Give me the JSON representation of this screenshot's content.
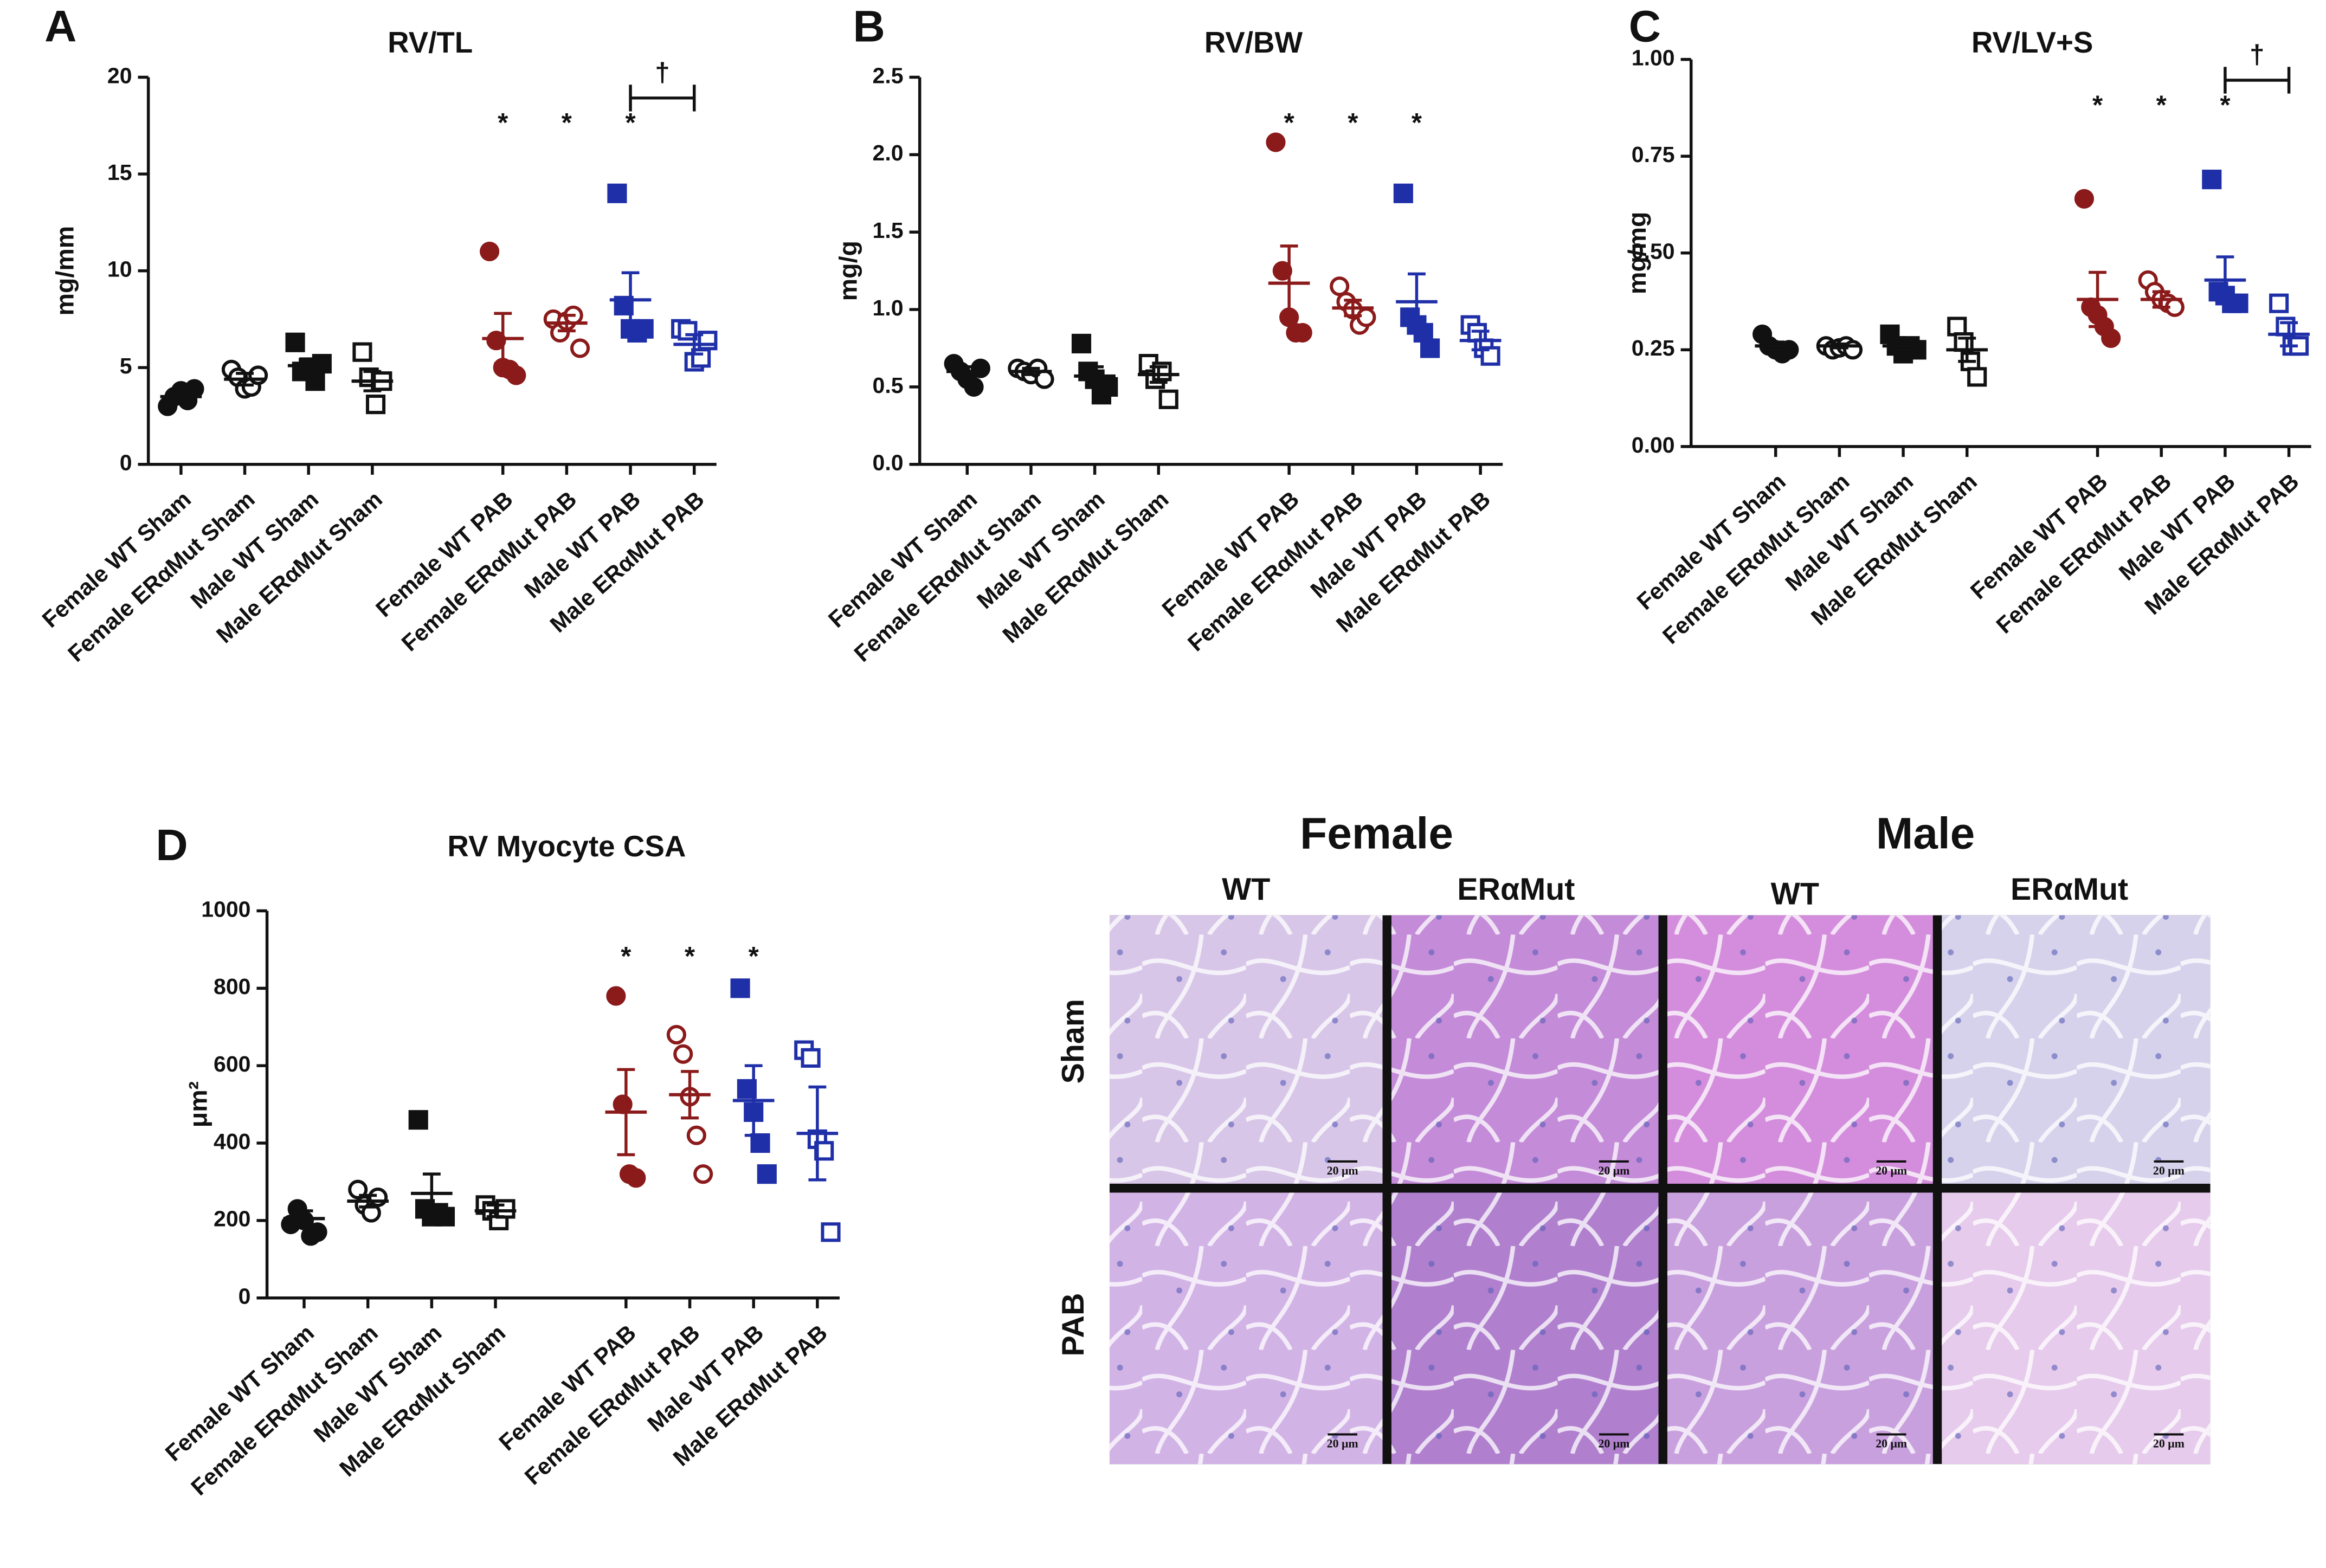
{
  "chart_data": [
    {
      "type": "dotplot",
      "panel": "A",
      "title": "RV/TL",
      "ylabel": "mg/mm",
      "categories": [
        "Female WT Sham",
        "Female ERαMut Sham",
        "Male WT Sham",
        "Male ERαMut Sham",
        "Female WT PAB",
        "Female ERαMut PAB",
        "Male WT PAB",
        "Male ERαMut PAB"
      ],
      "points": [
        [
          3.0,
          3.5,
          3.8,
          3.3,
          3.9
        ],
        [
          4.9,
          4.5,
          3.9,
          4.0,
          4.6
        ],
        [
          6.3,
          4.8,
          5.0,
          4.3,
          5.2
        ],
        [
          5.8,
          4.5,
          3.1,
          4.3
        ],
        [
          11.0,
          6.4,
          5.0,
          4.9,
          4.6
        ],
        [
          7.5,
          6.8,
          7.4,
          7.7,
          6.0
        ],
        [
          14.0,
          8.2,
          7.0,
          6.8,
          7.0
        ],
        [
          7.0,
          6.9,
          5.3,
          5.5,
          6.4
        ]
      ],
      "means": [
        3.5,
        4.4,
        5.1,
        4.3,
        6.5,
        7.3,
        8.5,
        6.2
      ],
      "sems": [
        0.2,
        0.3,
        0.35,
        0.5,
        1.3,
        0.4,
        1.4,
        0.5
      ],
      "colors": [
        "#111111",
        "#111111",
        "#111111",
        "#111111",
        "#8b1a1a",
        "#8b1a1a",
        "#1f2fa8",
        "#1f2fa8"
      ],
      "markers": [
        "circle",
        "circle",
        "square",
        "square",
        "circle",
        "circle",
        "square",
        "square"
      ],
      "filled": [
        true,
        false,
        true,
        false,
        true,
        false,
        true,
        false
      ],
      "ylim": [
        0,
        20
      ],
      "yticks": [
        0,
        5,
        10,
        15,
        20
      ],
      "significance_mark": "*",
      "significant": [
        4,
        5,
        6
      ],
      "dagger": "†",
      "dagger_pair": [
        6,
        7
      ]
    },
    {
      "type": "dotplot",
      "panel": "B",
      "title": "RV/BW",
      "ylabel": "mg/g",
      "categories": [
        "Female WT Sham",
        "Female ERαMut Sham",
        "Male WT Sham",
        "Male ERαMut Sham",
        "Female WT PAB",
        "Female ERαMut PAB",
        "Male WT PAB",
        "Male ERαMut PAB"
      ],
      "points": [
        [
          0.65,
          0.6,
          0.55,
          0.5,
          0.62
        ],
        [
          0.62,
          0.6,
          0.58,
          0.62,
          0.55
        ],
        [
          0.78,
          0.6,
          0.55,
          0.45,
          0.5
        ],
        [
          0.65,
          0.55,
          0.6,
          0.42
        ],
        [
          2.08,
          1.25,
          0.95,
          0.85,
          0.85
        ],
        [
          1.15,
          1.05,
          1.0,
          0.9,
          0.95
        ],
        [
          1.75,
          0.95,
          0.9,
          0.85,
          0.75
        ],
        [
          0.9,
          0.85,
          0.75,
          0.7
        ]
      ],
      "means": [
        0.6,
        0.6,
        0.57,
        0.58,
        1.17,
        1.01,
        1.05,
        0.8
      ],
      "sems": [
        0.03,
        0.02,
        0.06,
        0.05,
        0.24,
        0.05,
        0.18,
        0.06
      ],
      "colors": [
        "#111111",
        "#111111",
        "#111111",
        "#111111",
        "#8b1a1a",
        "#8b1a1a",
        "#1f2fa8",
        "#1f2fa8"
      ],
      "markers": [
        "circle",
        "circle",
        "square",
        "square",
        "circle",
        "circle",
        "square",
        "square"
      ],
      "filled": [
        true,
        false,
        true,
        false,
        true,
        false,
        true,
        false
      ],
      "ylim": [
        0,
        2.5
      ],
      "yticks": [
        {
          "value": 0,
          "label": "0.0"
        },
        0.5,
        {
          "value": 1,
          "label": "1.0"
        },
        1.5,
        {
          "value": 2,
          "label": "2.0"
        },
        2.5
      ],
      "significance_mark": "*",
      "significant": [
        4,
        5,
        6
      ]
    },
    {
      "type": "dotplot",
      "panel": "C",
      "title": "RV/LV+S",
      "ylabel": "mg/mg",
      "categories": [
        "Female WT Sham",
        "Female ERαMut Sham",
        "Male WT Sham",
        "Male ERαMut Sham",
        "Female WT PAB",
        "Female ERαMut PAB",
        "Male WT PAB",
        "Male ERαMut PAB"
      ],
      "points": [
        [
          0.29,
          0.26,
          0.25,
          0.24,
          0.25
        ],
        [
          0.26,
          0.25,
          0.255,
          0.26,
          0.25
        ],
        [
          0.29,
          0.26,
          0.24,
          0.26,
          0.25
        ],
        [
          0.31,
          0.27,
          0.22,
          0.18
        ],
        [
          0.64,
          0.36,
          0.34,
          0.31,
          0.28
        ],
        [
          0.43,
          0.4,
          0.38,
          0.37,
          0.36
        ],
        [
          0.69,
          0.4,
          0.39,
          0.37,
          0.37
        ],
        [
          0.37,
          0.31,
          0.26,
          0.26
        ]
      ],
      "means": [
        0.26,
        0.26,
        0.26,
        0.25,
        0.38,
        0.38,
        0.43,
        0.29
      ],
      "sems": [
        0.01,
        0.005,
        0.01,
        0.03,
        0.07,
        0.02,
        0.06,
        0.03
      ],
      "colors": [
        "#111111",
        "#111111",
        "#111111",
        "#111111",
        "#8b1a1a",
        "#8b1a1a",
        "#1f2fa8",
        "#1f2fa8"
      ],
      "markers": [
        "circle",
        "circle",
        "square",
        "square",
        "circle",
        "circle",
        "square",
        "square"
      ],
      "filled": [
        true,
        false,
        true,
        false,
        true,
        false,
        true,
        false
      ],
      "ylim": [
        0,
        1
      ],
      "yticks": [
        {
          "value": 0,
          "label": "0.00"
        },
        {
          "value": 0.25,
          "label": "0.25"
        },
        {
          "value": 0.5,
          "label": "0.50"
        },
        {
          "value": 0.75,
          "label": "0.75"
        },
        {
          "value": 1,
          "label": "1.00"
        }
      ],
      "significance_mark": "*",
      "significant": [
        4,
        5,
        6
      ],
      "dagger": "†",
      "dagger_pair": [
        6,
        7
      ]
    },
    {
      "type": "dotplot",
      "panel": "D",
      "title": "RV Myocyte CSA",
      "ylabel": "μm²",
      "categories": [
        "Female WT Sham",
        "Female ERαMut Sham",
        "Male WT Sham",
        "Male ERαMut Sham",
        "Female WT PAB",
        "Female ERαMut PAB",
        "Male WT PAB",
        "Male ERαMut PAB"
      ],
      "points": [
        [
          190,
          230,
          200,
          160,
          170
        ],
        [
          280,
          240,
          220,
          260
        ],
        [
          460,
          230,
          210,
          220,
          210
        ],
        [
          240,
          225,
          200,
          230
        ],
        [
          780,
          500,
          320,
          310
        ],
        [
          680,
          630,
          520,
          420,
          320
        ],
        [
          800,
          540,
          480,
          400,
          320
        ],
        [
          640,
          620,
          410,
          380,
          170
        ]
      ],
      "means": [
        205,
        250,
        270,
        225,
        480,
        525,
        510,
        425
      ],
      "sems": [
        20,
        15,
        50,
        15,
        110,
        60,
        90,
        120
      ],
      "colors": [
        "#111111",
        "#111111",
        "#111111",
        "#111111",
        "#8b1a1a",
        "#8b1a1a",
        "#1f2fa8",
        "#1f2fa8"
      ],
      "markers": [
        "circle",
        "circle",
        "square",
        "square",
        "circle",
        "circle",
        "square",
        "square"
      ],
      "filled": [
        true,
        false,
        true,
        false,
        true,
        false,
        true,
        false
      ],
      "ylim": [
        0,
        1000
      ],
      "yticks": [
        0,
        200,
        400,
        600,
        800,
        1000
      ],
      "significance_mark": "*",
      "significant": [
        4,
        5,
        6
      ]
    }
  ],
  "histology": {
    "column_groups": [
      "Female",
      "Male"
    ],
    "columns": [
      "WT",
      "ERαMut",
      "WT",
      "ERαMut"
    ],
    "rows": [
      "Sham",
      "PAB"
    ],
    "scale_bar": "20 μm"
  }
}
